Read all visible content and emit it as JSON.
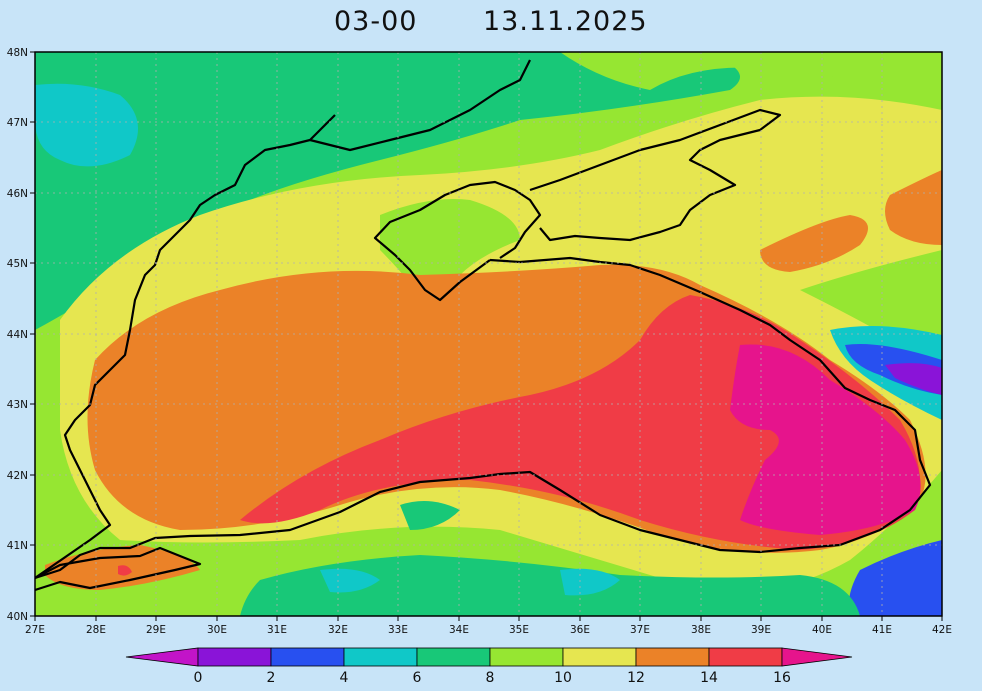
{
  "title": {
    "time": "03-00",
    "date": "13.11.2025"
  },
  "map": {
    "lon_labels": [
      "27E",
      "28E",
      "29E",
      "30E",
      "31E",
      "32E",
      "33E",
      "34E",
      "35E",
      "36E",
      "37E",
      "38E",
      "39E",
      "40E",
      "41E",
      "42E"
    ],
    "lat_labels": [
      "48N",
      "47N",
      "46N",
      "45N",
      "44N",
      "43N",
      "42N",
      "41N",
      "40N"
    ],
    "grid": "dotted",
    "coastline_color": "#000000"
  },
  "colorbar": {
    "labels": [
      "0",
      "2",
      "4",
      "6",
      "8",
      "10",
      "12",
      "14",
      "16"
    ],
    "colors": [
      "#c214c8",
      "#8a14d8",
      "#2850f0",
      "#10c8c8",
      "#18c878",
      "#96e632",
      "#e6e650",
      "#eb8228",
      "#f03c46",
      "#e6148c"
    ]
  }
}
